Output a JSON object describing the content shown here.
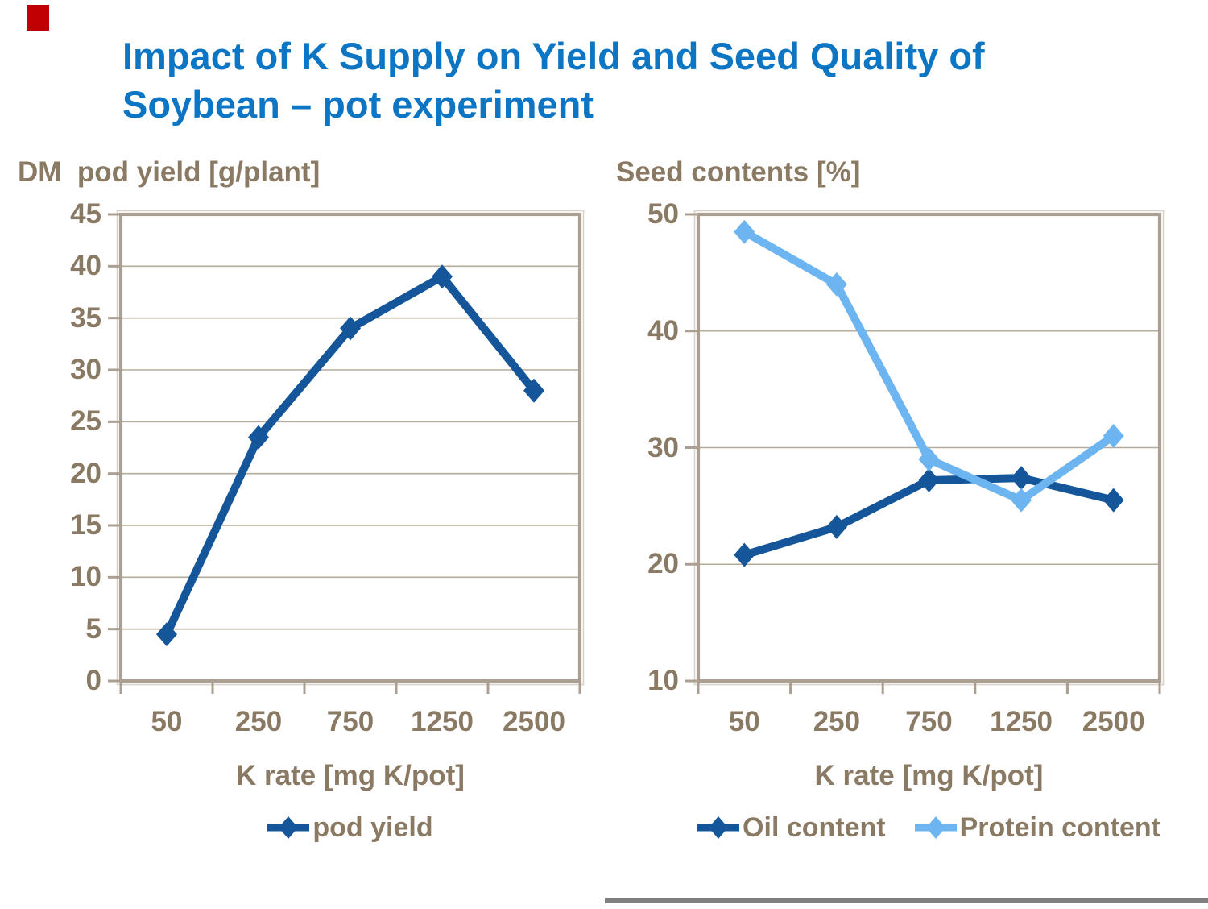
{
  "title": {
    "line1": "Impact of K Supply on Yield and Seed Quality of",
    "line2": "Soybean – pot experiment",
    "color": "#0c76c4"
  },
  "accent_block_color": "#c00000",
  "text_color": "#8a7a64",
  "footer_rule_color": "#808080",
  "chart_style": {
    "frame_color": "#ab9f92",
    "frame_highlight_color": "#d9d3c7",
    "gridline_color": "#b5ab9b",
    "tick_color": "#ab9f92"
  },
  "chart_data": [
    {
      "type": "line",
      "title": "DM  pod yield [g/plant]",
      "xlabel": "K rate [mg K/pot]",
      "categories": [
        "50",
        "250",
        "750",
        "1250",
        "2500"
      ],
      "series": [
        {
          "name": "pod yield",
          "color": "#15569a",
          "values": [
            4.5,
            23.5,
            34,
            39,
            28
          ]
        }
      ],
      "ylim": [
        0,
        45
      ],
      "ystep": 5,
      "grid": true,
      "legend_position": "bottom"
    },
    {
      "type": "line",
      "title": "Seed contents [%]",
      "xlabel": "K rate [mg K/pot]",
      "categories": [
        "50",
        "250",
        "750",
        "1250",
        "2500"
      ],
      "series": [
        {
          "name": "Oil content",
          "color": "#15569a",
          "values": [
            20.8,
            23.2,
            27.2,
            27.4,
            25.5
          ]
        },
        {
          "name": "Protein content",
          "color": "#6db5f0",
          "values": [
            48.5,
            44,
            29,
            25.5,
            31
          ]
        }
      ],
      "ylim": [
        10,
        50
      ],
      "ystep": 10,
      "grid": true,
      "legend_position": "bottom"
    }
  ]
}
